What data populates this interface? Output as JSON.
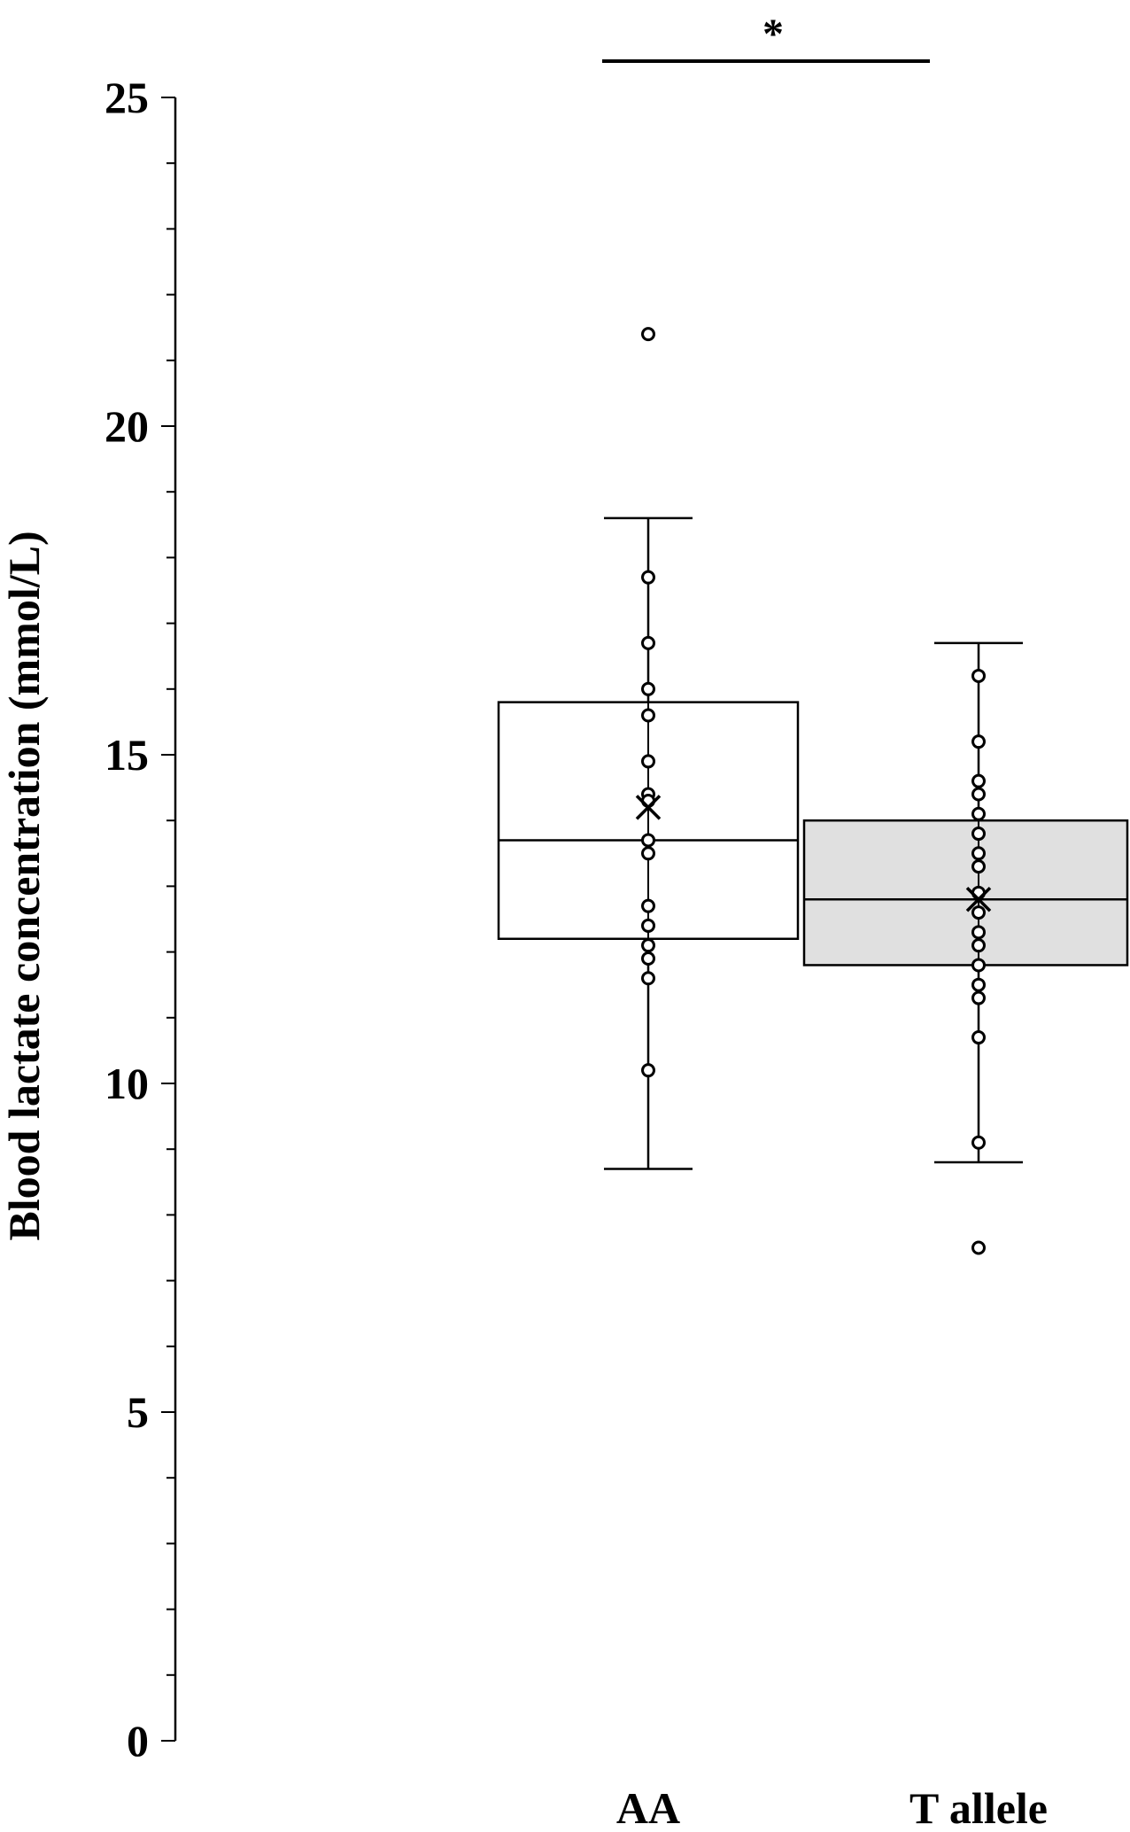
{
  "chart_data": {
    "type": "box",
    "ylabel": "Blood lactate concentration (mmol/L)",
    "ylim": [
      0,
      25
    ],
    "yticks": [
      "0",
      "5",
      "10",
      "15",
      "20",
      "25"
    ],
    "significance": {
      "text": "*",
      "between": [
        "AA",
        "T allele"
      ]
    },
    "categories": [
      "AA",
      "T allele"
    ],
    "groups": [
      {
        "category": "AA",
        "fill": "#ffffff",
        "whisker_low": 8.7,
        "q1": 12.2,
        "median": 13.7,
        "q3": 15.8,
        "whisker_high": 18.6,
        "mean": 14.2,
        "points": [
          21.4,
          17.7,
          16.7,
          16.0,
          15.6,
          14.9,
          14.4,
          14.3,
          13.7,
          13.5,
          12.7,
          12.4,
          12.1,
          11.9,
          11.6,
          10.2
        ]
      },
      {
        "category": "T allele",
        "fill": "#e0e0e0",
        "whisker_low": 8.8,
        "q1": 11.8,
        "median": 12.8,
        "q3": 14.0,
        "whisker_high": 16.7,
        "mean": 12.8,
        "points": [
          16.2,
          15.2,
          14.6,
          14.4,
          14.1,
          13.8,
          13.5,
          13.3,
          12.9,
          12.6,
          12.3,
          12.1,
          11.8,
          11.5,
          11.3,
          10.7,
          9.1,
          7.5
        ]
      }
    ]
  }
}
